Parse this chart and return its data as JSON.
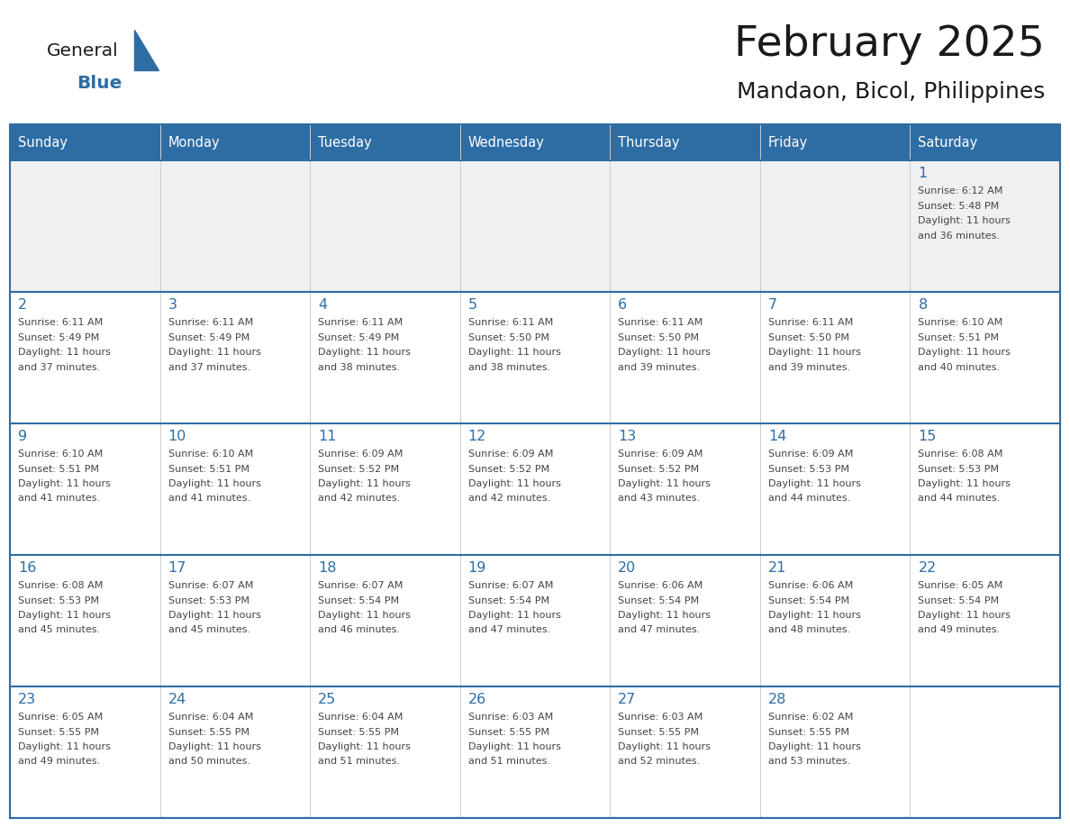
{
  "title": "February 2025",
  "subtitle": "Mandaon, Bicol, Philippines",
  "header_bg": "#2E6DA4",
  "header_text_color": "#FFFFFF",
  "cell_bg_normal": "#FFFFFF",
  "cell_bg_row1": "#F0F0F0",
  "border_color": "#2E6DA4",
  "days_of_week": [
    "Sunday",
    "Monday",
    "Tuesday",
    "Wednesday",
    "Thursday",
    "Friday",
    "Saturday"
  ],
  "title_color": "#1a1a1a",
  "subtitle_color": "#1a1a1a",
  "day_num_color": "#2E6DA4",
  "cell_text_color": "#444444",
  "logo_general_color": "#1a1a1a",
  "logo_blue_color": "#2E6DA4",
  "row_line_color": "#2E6DA4",
  "col_line_color": "#CCCCCC",
  "calendar": [
    [
      null,
      null,
      null,
      null,
      null,
      null,
      {
        "day": 1,
        "sunrise": "6:12 AM",
        "sunset": "5:48 PM",
        "daylight": "11 hours and 36 minutes."
      }
    ],
    [
      {
        "day": 2,
        "sunrise": "6:11 AM",
        "sunset": "5:49 PM",
        "daylight": "11 hours and 37 minutes."
      },
      {
        "day": 3,
        "sunrise": "6:11 AM",
        "sunset": "5:49 PM",
        "daylight": "11 hours and 37 minutes."
      },
      {
        "day": 4,
        "sunrise": "6:11 AM",
        "sunset": "5:49 PM",
        "daylight": "11 hours and 38 minutes."
      },
      {
        "day": 5,
        "sunrise": "6:11 AM",
        "sunset": "5:50 PM",
        "daylight": "11 hours and 38 minutes."
      },
      {
        "day": 6,
        "sunrise": "6:11 AM",
        "sunset": "5:50 PM",
        "daylight": "11 hours and 39 minutes."
      },
      {
        "day": 7,
        "sunrise": "6:11 AM",
        "sunset": "5:50 PM",
        "daylight": "11 hours and 39 minutes."
      },
      {
        "day": 8,
        "sunrise": "6:10 AM",
        "sunset": "5:51 PM",
        "daylight": "11 hours and 40 minutes."
      }
    ],
    [
      {
        "day": 9,
        "sunrise": "6:10 AM",
        "sunset": "5:51 PM",
        "daylight": "11 hours and 41 minutes."
      },
      {
        "day": 10,
        "sunrise": "6:10 AM",
        "sunset": "5:51 PM",
        "daylight": "11 hours and 41 minutes."
      },
      {
        "day": 11,
        "sunrise": "6:09 AM",
        "sunset": "5:52 PM",
        "daylight": "11 hours and 42 minutes."
      },
      {
        "day": 12,
        "sunrise": "6:09 AM",
        "sunset": "5:52 PM",
        "daylight": "11 hours and 42 minutes."
      },
      {
        "day": 13,
        "sunrise": "6:09 AM",
        "sunset": "5:52 PM",
        "daylight": "11 hours and 43 minutes."
      },
      {
        "day": 14,
        "sunrise": "6:09 AM",
        "sunset": "5:53 PM",
        "daylight": "11 hours and 44 minutes."
      },
      {
        "day": 15,
        "sunrise": "6:08 AM",
        "sunset": "5:53 PM",
        "daylight": "11 hours and 44 minutes."
      }
    ],
    [
      {
        "day": 16,
        "sunrise": "6:08 AM",
        "sunset": "5:53 PM",
        "daylight": "11 hours and 45 minutes."
      },
      {
        "day": 17,
        "sunrise": "6:07 AM",
        "sunset": "5:53 PM",
        "daylight": "11 hours and 45 minutes."
      },
      {
        "day": 18,
        "sunrise": "6:07 AM",
        "sunset": "5:54 PM",
        "daylight": "11 hours and 46 minutes."
      },
      {
        "day": 19,
        "sunrise": "6:07 AM",
        "sunset": "5:54 PM",
        "daylight": "11 hours and 47 minutes."
      },
      {
        "day": 20,
        "sunrise": "6:06 AM",
        "sunset": "5:54 PM",
        "daylight": "11 hours and 47 minutes."
      },
      {
        "day": 21,
        "sunrise": "6:06 AM",
        "sunset": "5:54 PM",
        "daylight": "11 hours and 48 minutes."
      },
      {
        "day": 22,
        "sunrise": "6:05 AM",
        "sunset": "5:54 PM",
        "daylight": "11 hours and 49 minutes."
      }
    ],
    [
      {
        "day": 23,
        "sunrise": "6:05 AM",
        "sunset": "5:55 PM",
        "daylight": "11 hours and 49 minutes."
      },
      {
        "day": 24,
        "sunrise": "6:04 AM",
        "sunset": "5:55 PM",
        "daylight": "11 hours and 50 minutes."
      },
      {
        "day": 25,
        "sunrise": "6:04 AM",
        "sunset": "5:55 PM",
        "daylight": "11 hours and 51 minutes."
      },
      {
        "day": 26,
        "sunrise": "6:03 AM",
        "sunset": "5:55 PM",
        "daylight": "11 hours and 51 minutes."
      },
      {
        "day": 27,
        "sunrise": "6:03 AM",
        "sunset": "5:55 PM",
        "daylight": "11 hours and 52 minutes."
      },
      {
        "day": 28,
        "sunrise": "6:02 AM",
        "sunset": "5:55 PM",
        "daylight": "11 hours and 53 minutes."
      },
      null
    ]
  ]
}
